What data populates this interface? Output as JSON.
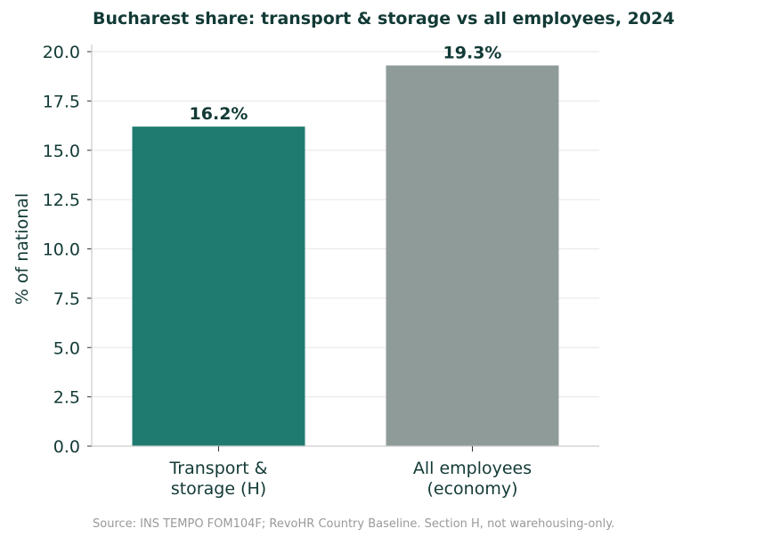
{
  "chart_data": {
    "type": "bar",
    "title": "Bucharest share: transport & storage vs all employees, 2024",
    "ylabel": "% of national",
    "xlabel": "",
    "categories": [
      [
        "Transport &",
        "storage (H)"
      ],
      [
        "All employees",
        "(economy)"
      ]
    ],
    "values": [
      16.2,
      19.3
    ],
    "data_labels": [
      "16.2%",
      "19.3%"
    ],
    "ylim": [
      0,
      20
    ],
    "yticks": [
      "0.0",
      "2.5",
      "5.0",
      "7.5",
      "10.0",
      "12.5",
      "15.0",
      "17.5",
      "20.0"
    ],
    "ytick_values": [
      0,
      2.5,
      5,
      7.5,
      10,
      12.5,
      15,
      17.5,
      20
    ],
    "grid": true,
    "colors": [
      "#1f7a70",
      "#8f9b98"
    ]
  },
  "source_note": "Source: INS TEMPO FOM104F; RevoHR Country Baseline. Section H, not warehousing-only."
}
